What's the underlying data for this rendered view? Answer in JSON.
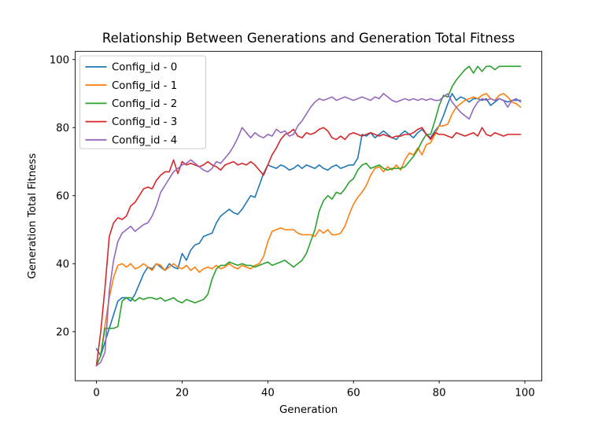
{
  "figure": {
    "title": "Relationship Between Generations and Generation Total Fitness"
  },
  "chart_data": {
    "type": "line",
    "title": "Relationship Between Generations and Generation Total Fitness",
    "xlabel": "Generation",
    "ylabel": "Generation Total Fitness",
    "x_description": "generation index, 0 to 99 step 1 (100 points per series)",
    "n_points": 100,
    "xlim": [
      -4.95,
      103.95
    ],
    "ylim": [
      5.6,
      102.4
    ],
    "xticks": [
      0,
      20,
      40,
      60,
      80,
      100
    ],
    "yticks": [
      20,
      40,
      60,
      80,
      100
    ],
    "grid": false,
    "legend_position": "upper left",
    "series": [
      {
        "name": "Config_id - 0",
        "color": "#1f77b4",
        "values": [
          15,
          13,
          17,
          21,
          25,
          29,
          30,
          30,
          29,
          31,
          34,
          37,
          39,
          38.5,
          40,
          39,
          38,
          40,
          39,
          38.5,
          43,
          41,
          44,
          45.5,
          46,
          48,
          48.5,
          49,
          52,
          54,
          55,
          56,
          55,
          54.5,
          56,
          58,
          60,
          59.5,
          63,
          66.5,
          69,
          68.5,
          68,
          69,
          68.5,
          67.5,
          68,
          69,
          68,
          69,
          68.5,
          68,
          69,
          68,
          67.5,
          68.5,
          69,
          68,
          68.5,
          69,
          69,
          71,
          78,
          77.5,
          78.5,
          77,
          78,
          79,
          78,
          77,
          76.5,
          78,
          79,
          78,
          77,
          78.5,
          79.5,
          78,
          77,
          79,
          80.5,
          83.5,
          87,
          90,
          88,
          89,
          88.5,
          87.5,
          88.5,
          88.5,
          88,
          88.5,
          86.5,
          87.5,
          88.5,
          88,
          87.5,
          88,
          88,
          88
        ]
      },
      {
        "name": "Config_id - 1",
        "color": "#ff7f0e",
        "values": [
          10,
          13,
          22,
          30,
          36,
          39.5,
          40,
          39,
          40,
          38.5,
          39,
          40,
          39,
          38,
          40,
          39.5,
          38,
          39,
          40,
          39,
          38.5,
          39.5,
          38,
          39,
          37.5,
          38.5,
          39,
          38.5,
          39.5,
          38.5,
          39,
          40,
          39,
          38.5,
          39.5,
          39,
          38.5,
          39.5,
          40,
          42,
          46.5,
          49.5,
          50,
          50.5,
          50,
          50,
          50,
          49,
          48.5,
          48.5,
          48.5,
          48,
          50,
          49,
          50,
          48.5,
          48.5,
          49,
          51,
          54.5,
          57.5,
          59.5,
          61,
          63,
          66,
          68,
          68.5,
          67,
          68.5,
          67.5,
          69,
          67.5,
          70.5,
          72.5,
          72,
          74,
          72,
          75,
          75.5,
          78,
          80.5,
          80.5,
          81,
          84,
          86,
          87,
          88,
          88.5,
          89,
          88.5,
          89.5,
          90,
          88.5,
          88,
          89.5,
          90,
          89,
          87.5,
          87,
          86
        ]
      },
      {
        "name": "Config_id - 2",
        "color": "#2ca02c",
        "values": [
          10,
          13,
          21,
          21,
          21,
          21.5,
          29,
          30,
          30,
          29,
          30,
          29.5,
          30,
          30,
          29.5,
          30,
          29,
          29.5,
          30,
          29,
          28.5,
          29.5,
          29,
          28.5,
          29,
          29.5,
          31,
          35.5,
          38.5,
          39.5,
          39.5,
          40.5,
          40,
          39.5,
          40,
          39.5,
          39.5,
          39,
          39.5,
          40,
          40.5,
          39.5,
          40,
          40.5,
          41,
          40,
          39,
          40,
          41,
          43,
          46.5,
          50,
          55.5,
          58.5,
          60,
          59,
          61,
          60.5,
          62,
          64,
          65,
          67.5,
          69,
          69.5,
          68,
          68.5,
          69,
          68,
          67.5,
          68,
          68,
          68,
          68.5,
          70,
          71.5,
          73.5,
          76,
          78,
          78,
          82,
          86.5,
          89.5,
          89,
          92,
          94,
          95.5,
          97,
          98,
          96,
          98,
          96.5,
          98,
          98,
          97,
          98,
          98,
          98,
          98,
          98,
          98
        ]
      },
      {
        "name": "Config_id - 3",
        "color": "#d62728",
        "values": [
          10,
          20,
          33,
          48,
          52,
          53.5,
          53,
          54,
          57,
          58,
          60,
          62,
          62.5,
          62,
          64.5,
          66,
          67,
          67,
          70.5,
          66.5,
          70,
          69,
          69.5,
          69,
          68.5,
          69,
          70,
          69,
          68.5,
          67.5,
          69,
          69.5,
          70,
          69,
          69.5,
          69,
          70,
          69,
          67.5,
          66,
          69,
          72,
          74,
          76.5,
          78,
          78.5,
          79.5,
          77.5,
          77,
          78.5,
          78,
          78.5,
          79.5,
          80,
          79,
          77,
          76.5,
          77.5,
          76.5,
          78,
          78.5,
          78,
          77.5,
          78,
          78.5,
          78,
          77.5,
          78,
          77.5,
          77,
          77.5,
          77.5,
          78,
          78,
          78.5,
          79.5,
          80,
          78,
          76.5,
          78.5,
          78,
          78,
          77.5,
          77,
          78.5,
          78,
          77.5,
          78,
          78.5,
          77.5,
          80,
          78,
          77.5,
          78.5,
          78,
          77.5,
          78,
          78,
          78,
          78
        ]
      },
      {
        "name": "Config_id - 4",
        "color": "#9467bd",
        "values": [
          10,
          11,
          14,
          32,
          41,
          46.5,
          49,
          50,
          51,
          49.5,
          50.5,
          51.5,
          52,
          54,
          57,
          61,
          63,
          65,
          67,
          68,
          69,
          69.5,
          70.5,
          69.5,
          68.5,
          67.5,
          67,
          68,
          70,
          69.5,
          71,
          72.5,
          74.5,
          77,
          80,
          78.5,
          77,
          78.5,
          77.5,
          77,
          78,
          77.5,
          79.5,
          78.5,
          79,
          77.5,
          78,
          80.5,
          82,
          84,
          86,
          87.5,
          88.5,
          88,
          88.5,
          89,
          88,
          88.5,
          89,
          88.5,
          88,
          88.5,
          89,
          88.5,
          88,
          89,
          88.5,
          90,
          89,
          88,
          87.5,
          88,
          88.5,
          88,
          88.5,
          88,
          88.5,
          88,
          88.5,
          88,
          88,
          89,
          90,
          87.5,
          86,
          84.5,
          83.5,
          82.5,
          85.5,
          87.5,
          88.5,
          88,
          88.5,
          88,
          88.5,
          88,
          86,
          88,
          88.5,
          87.5
        ]
      }
    ]
  }
}
